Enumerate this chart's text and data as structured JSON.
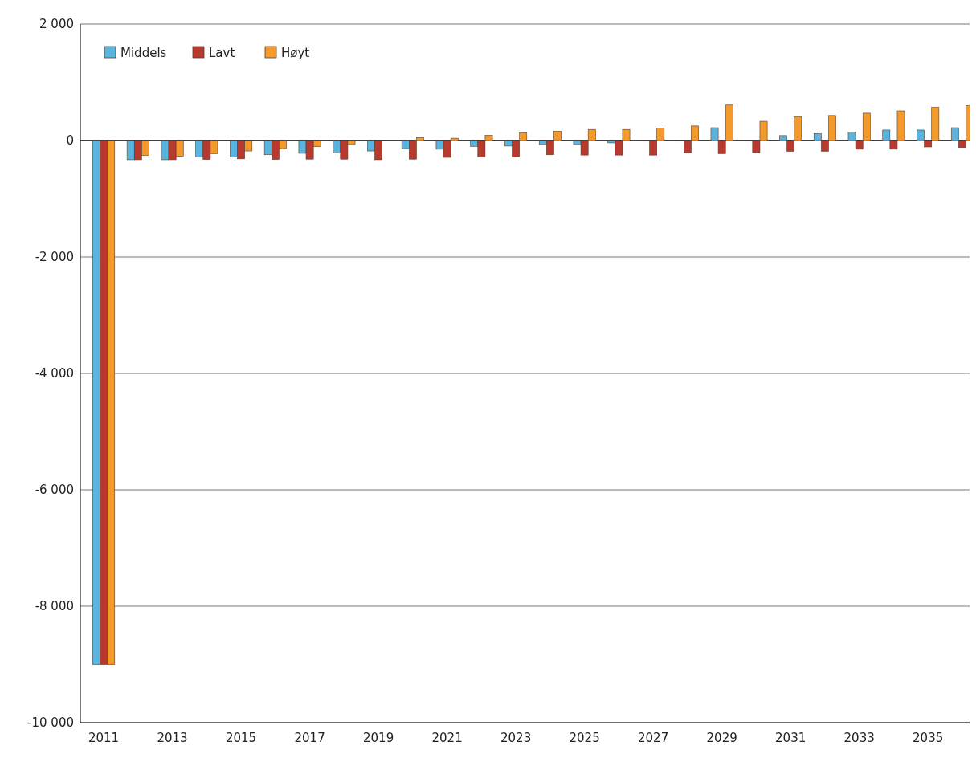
{
  "chart_data": {
    "type": "bar",
    "categories": [
      "2011",
      null,
      "2013",
      null,
      "2015",
      null,
      "2017",
      null,
      "2019",
      null,
      "2021",
      null,
      "2023",
      null,
      "2025",
      null,
      "2027",
      null,
      "2029",
      null,
      "2031",
      null,
      "2033",
      null,
      "2035",
      null
    ],
    "series": [
      {
        "name": "Middels",
        "color": "#5ab4e0",
        "values": [
          -9000,
          -330,
          -330,
          -285,
          -285,
          -245,
          -220,
          -215,
          -180,
          -140,
          -150,
          -100,
          -95,
          -70,
          -70,
          -40,
          -10,
          -10,
          220,
          -10,
          85,
          120,
          145,
          180,
          180,
          220
        ]
      },
      {
        "name": "Lavt",
        "color": "#b83a2e",
        "values": [
          -9000,
          -330,
          -330,
          -325,
          -315,
          -325,
          -320,
          -320,
          -330,
          -320,
          -290,
          -280,
          -285,
          -245,
          -250,
          -250,
          -250,
          -215,
          -225,
          -210,
          -185,
          -185,
          -150,
          -150,
          -110,
          -120
        ]
      },
      {
        "name": "Høyt",
        "color": "#f39a2a",
        "values": [
          -9000,
          -255,
          -270,
          -225,
          -180,
          -140,
          -105,
          -70,
          0,
          50,
          40,
          90,
          135,
          160,
          190,
          190,
          215,
          250,
          610,
          330,
          405,
          430,
          470,
          510,
          570,
          600
        ]
      }
    ],
    "ylim": [
      -10000,
      2000
    ],
    "yticks": [
      {
        "value": 2000,
        "label": "2 000"
      },
      0,
      {
        "value": -2000,
        "label": "-2 000"
      },
      {
        "value": -4000,
        "label": "-4 000"
      },
      {
        "value": -6000,
        "label": "-6 000"
      },
      {
        "value": -8000,
        "label": "-8 000"
      },
      {
        "value": -10000,
        "label": "-10 000"
      }
    ],
    "grid": "y",
    "legend": "top left"
  }
}
